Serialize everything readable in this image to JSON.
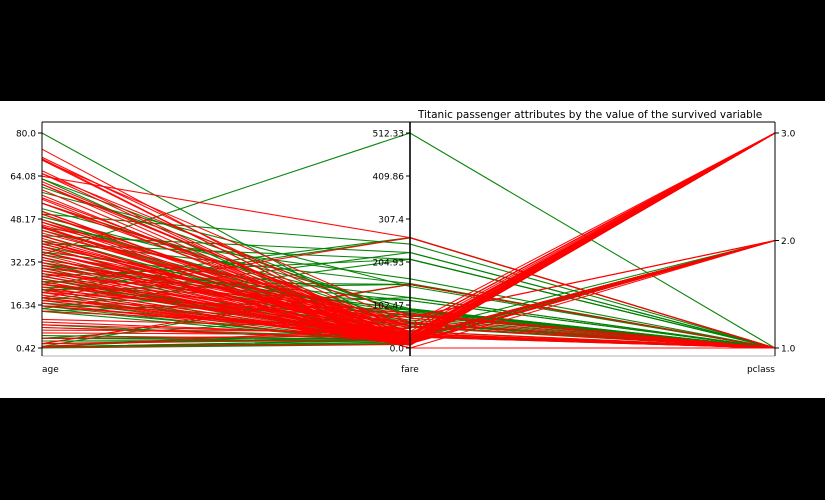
{
  "chart_data": {
    "type": "parallel_coordinates",
    "title": "Titanic passenger attributes by the value of the survived variable",
    "axes": [
      {
        "name": "age",
        "label": "age",
        "ticks": [
          "0.42",
          "16.34",
          "32.25",
          "48.17",
          "64.08",
          "80.0"
        ],
        "range": [
          0.42,
          80.0
        ]
      },
      {
        "name": "fare",
        "label": "fare",
        "ticks": [
          "0.0",
          "102.47",
          "204.93",
          "307.4",
          "409.86",
          "512.33"
        ],
        "range": [
          0.0,
          512.33
        ]
      },
      {
        "name": "pclass",
        "label": "pclass",
        "ticks": [
          "1.0",
          "2.0",
          "3.0"
        ],
        "range": [
          1.0,
          3.0
        ]
      }
    ],
    "series": [
      {
        "color": "#008000",
        "lines": [
          [
            80.0,
            30.0,
            1
          ],
          [
            63.0,
            77.96,
            1
          ],
          [
            60.0,
            79.2,
            1
          ],
          [
            58.0,
            146.52,
            1
          ],
          [
            54.0,
            59.4,
            1
          ],
          [
            52.0,
            93.5,
            1
          ],
          [
            50.0,
            247.52,
            1
          ],
          [
            49.0,
            89.1,
            1
          ],
          [
            48.0,
            39.6,
            1
          ],
          [
            48.0,
            52.0,
            1
          ],
          [
            45.0,
            164.87,
            1
          ],
          [
            45.0,
            26.55,
            1
          ],
          [
            44.0,
            57.98,
            1
          ],
          [
            42.0,
            227.53,
            1
          ],
          [
            40.0,
            153.46,
            1
          ],
          [
            39.0,
            211.34,
            1
          ],
          [
            38.0,
            71.28,
            1
          ],
          [
            36.0,
            120.0,
            1
          ],
          [
            35.0,
            512.33,
            1
          ],
          [
            35.0,
            83.48,
            1
          ],
          [
            33.0,
            90.0,
            1
          ],
          [
            32.0,
            76.29,
            1
          ],
          [
            31.0,
            113.27,
            1
          ],
          [
            30.0,
            93.5,
            1
          ],
          [
            29.0,
            66.6,
            1
          ],
          [
            27.0,
            211.5,
            1
          ],
          [
            26.0,
            30.0,
            1
          ],
          [
            25.0,
            151.55,
            1
          ],
          [
            24.0,
            263.0,
            1
          ],
          [
            24.0,
            49.5,
            1
          ],
          [
            23.0,
            113.27,
            1
          ],
          [
            22.0,
            151.55,
            1
          ],
          [
            21.0,
            262.37,
            1
          ],
          [
            19.0,
            91.08,
            1
          ],
          [
            18.0,
            227.53,
            1
          ],
          [
            17.0,
            57.0,
            1
          ],
          [
            16.0,
            86.5,
            1
          ],
          [
            15.0,
            211.34,
            1
          ],
          [
            14.0,
            120.0,
            1
          ],
          [
            4.0,
            81.86,
            1
          ],
          [
            0.92,
            151.55,
            1
          ],
          [
            2.0,
            151.55,
            1
          ],
          [
            42.0,
            26.0,
            2
          ],
          [
            36.0,
            26.0,
            2
          ],
          [
            34.0,
            23.0,
            2
          ],
          [
            28.0,
            13.0,
            2
          ],
          [
            24.0,
            26.0,
            2
          ],
          [
            21.0,
            10.5,
            2
          ],
          [
            19.0,
            26.0,
            2
          ],
          [
            8.0,
            26.0,
            2
          ],
          [
            4.0,
            23.0,
            2
          ],
          [
            3.0,
            18.75,
            2
          ],
          [
            2.0,
            26.0,
            2
          ],
          [
            1.0,
            39.0,
            2
          ],
          [
            0.83,
            18.75,
            2
          ],
          [
            0.67,
            14.5,
            2
          ],
          [
            63.0,
            9.59,
            3
          ],
          [
            38.0,
            7.23,
            3
          ],
          [
            32.0,
            7.92,
            3
          ],
          [
            27.0,
            11.13,
            3
          ],
          [
            26.0,
            7.93,
            3
          ],
          [
            24.0,
            16.7,
            3
          ],
          [
            22.0,
            7.25,
            3
          ],
          [
            18.0,
            9.35,
            3
          ],
          [
            16.0,
            7.73,
            3
          ],
          [
            15.0,
            14.45,
            3
          ],
          [
            14.0,
            11.24,
            3
          ],
          [
            9.0,
            15.25,
            3
          ],
          [
            5.0,
            19.26,
            3
          ],
          [
            4.0,
            16.7,
            3
          ],
          [
            3.0,
            15.9,
            3
          ],
          [
            1.0,
            11.13,
            3
          ],
          [
            0.75,
            19.26,
            3
          ],
          [
            0.42,
            8.52,
            3
          ]
        ]
      },
      {
        "color": "#ff0000",
        "lines": [
          [
            71.0,
            34.65,
            1
          ],
          [
            70.0,
            71.0,
            1
          ],
          [
            65.0,
            61.98,
            1
          ],
          [
            64.0,
            263.0,
            1
          ],
          [
            62.0,
            26.55,
            1
          ],
          [
            61.0,
            33.5,
            1
          ],
          [
            56.0,
            30.7,
            1
          ],
          [
            54.0,
            51.86,
            1
          ],
          [
            50.0,
            28.71,
            1
          ],
          [
            47.0,
            52.0,
            1
          ],
          [
            46.0,
            61.18,
            1
          ],
          [
            45.0,
            35.5,
            1
          ],
          [
            40.0,
            27.72,
            1
          ],
          [
            38.0,
            0.0,
            1
          ],
          [
            37.0,
            52.55,
            1
          ],
          [
            36.0,
            40.13,
            1
          ],
          [
            31.0,
            52.0,
            1
          ],
          [
            29.0,
            30.0,
            1
          ],
          [
            28.0,
            82.17,
            1
          ],
          [
            24.0,
            79.2,
            1
          ],
          [
            22.0,
            61.98,
            1
          ],
          [
            19.0,
            263.0,
            1
          ],
          [
            2.0,
            151.55,
            1
          ],
          [
            70.0,
            10.5,
            2
          ],
          [
            66.0,
            10.5,
            2
          ],
          [
            57.0,
            12.35,
            2
          ],
          [
            54.0,
            26.0,
            2
          ],
          [
            51.0,
            12.53,
            2
          ],
          [
            42.0,
            13.0,
            2
          ],
          [
            39.0,
            26.0,
            2
          ],
          [
            36.0,
            13.0,
            2
          ],
          [
            34.0,
            21.0,
            2
          ],
          [
            30.0,
            13.0,
            2
          ],
          [
            27.0,
            26.0,
            2
          ],
          [
            25.0,
            13.0,
            2
          ],
          [
            23.0,
            10.5,
            2
          ],
          [
            21.0,
            73.5,
            2
          ],
          [
            19.0,
            11.5,
            2
          ],
          [
            18.0,
            73.5,
            2
          ],
          [
            16.0,
            26.0,
            2
          ],
          [
            40.0,
            0.0,
            2
          ],
          [
            74.0,
            7.78,
            3
          ],
          [
            70.5,
            7.75,
            3
          ],
          [
            65.0,
            7.75,
            3
          ],
          [
            61.0,
            6.24,
            3
          ],
          [
            59.0,
            7.25,
            3
          ],
          [
            55.5,
            8.05,
            3
          ],
          [
            51.0,
            7.05,
            3
          ],
          [
            50.0,
            8.05,
            3
          ],
          [
            48.0,
            7.85,
            3
          ],
          [
            47.0,
            9.0,
            3
          ],
          [
            45.5,
            7.23,
            3
          ],
          [
            45.0,
            8.05,
            3
          ],
          [
            44.0,
            16.1,
            3
          ],
          [
            43.0,
            46.9,
            3
          ],
          [
            42.0,
            7.65,
            3
          ],
          [
            41.0,
            14.11,
            3
          ],
          [
            40.0,
            27.9,
            3
          ],
          [
            39.0,
            31.27,
            3
          ],
          [
            38.0,
            8.66,
            3
          ],
          [
            36.0,
            24.15,
            3
          ],
          [
            35.0,
            8.05,
            3
          ],
          [
            34.0,
            6.5,
            3
          ],
          [
            33.0,
            8.66,
            3
          ],
          [
            32.0,
            56.5,
            3
          ],
          [
            31.0,
            18.0,
            3
          ],
          [
            30.0,
            8.66,
            3
          ],
          [
            29.0,
            7.75,
            3
          ],
          [
            28.0,
            9.5,
            3
          ],
          [
            27.0,
            7.9,
            3
          ],
          [
            26.0,
            14.45,
            3
          ],
          [
            25.0,
            7.05,
            3
          ],
          [
            24.0,
            24.15,
            3
          ],
          [
            23.0,
            9.22,
            3
          ],
          [
            22.0,
            7.25,
            3
          ],
          [
            21.0,
            8.05,
            3
          ],
          [
            20.0,
            9.85,
            3
          ],
          [
            19.0,
            14.5,
            3
          ],
          [
            18.0,
            17.8,
            3
          ],
          [
            17.0,
            7.13,
            3
          ],
          [
            16.0,
            34.38,
            3
          ],
          [
            14.0,
            46.9,
            3
          ],
          [
            11.0,
            46.9,
            3
          ],
          [
            10.0,
            29.13,
            3
          ],
          [
            9.0,
            31.39,
            3
          ],
          [
            8.0,
            21.08,
            3
          ],
          [
            7.0,
            39.69,
            3
          ],
          [
            6.0,
            31.28,
            3
          ],
          [
            4.0,
            29.13,
            3
          ],
          [
            2.0,
            21.08,
            3
          ],
          [
            1.0,
            46.9,
            3
          ],
          [
            0.83,
            9.35,
            3
          ]
        ]
      }
    ],
    "grid": false,
    "legend": "none"
  }
}
